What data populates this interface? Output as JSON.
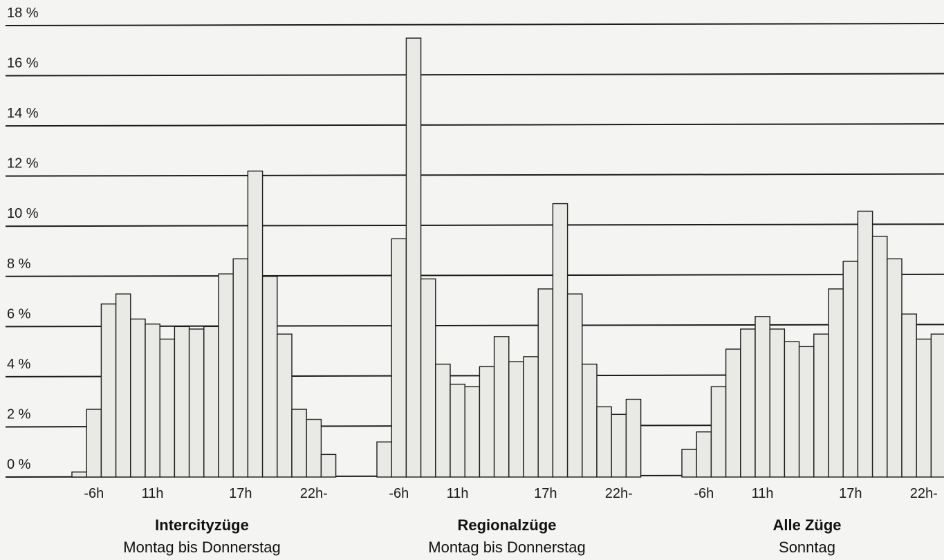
{
  "chart_data": {
    "type": "bar",
    "ylim": [
      0,
      18
    ],
    "yticks": [
      "0 %",
      "2 %",
      "4 %",
      "6 %",
      "8 %",
      "10 %",
      "12 %",
      "14 %",
      "16 %",
      "18 %"
    ],
    "grid": true,
    "groups": [
      {
        "title": "Intercityzüge",
        "subtitle": "Montag bis Donnerstag",
        "x_tick_labels": [
          "-6h",
          "11h",
          "17h",
          "22h-"
        ],
        "values": [
          0.2,
          2.7,
          6.9,
          7.3,
          6.3,
          6.1,
          5.5,
          6.0,
          5.9,
          6.0,
          8.1,
          8.7,
          12.2,
          8.0,
          5.7,
          2.7,
          2.3,
          0.9
        ]
      },
      {
        "title": "Regionalzüge",
        "subtitle": "Montag bis Donnerstag",
        "x_tick_labels": [
          "-6h",
          "11h",
          "17h",
          "22h-"
        ],
        "values": [
          1.4,
          9.5,
          17.5,
          7.9,
          4.5,
          3.7,
          3.6,
          4.4,
          5.6,
          4.6,
          4.8,
          7.5,
          10.9,
          7.3,
          4.5,
          2.8,
          2.5,
          3.1
        ]
      },
      {
        "title": "Alle Züge",
        "subtitle": "Sonntag",
        "x_tick_labels": [
          "-6h",
          "11h",
          "17h",
          "22h-"
        ],
        "values": [
          1.1,
          1.8,
          3.6,
          5.1,
          5.9,
          6.4,
          5.9,
          5.4,
          5.2,
          5.7,
          7.5,
          8.6,
          10.6,
          9.6,
          8.7,
          6.5,
          5.5,
          5.7
        ]
      }
    ]
  }
}
